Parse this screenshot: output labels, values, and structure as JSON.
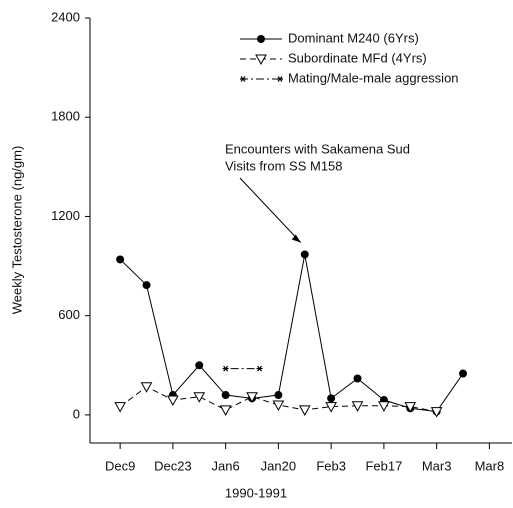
{
  "chart_data": {
    "type": "line",
    "annotation": [
      "Encounters with Sakamena Sud",
      "Visits from SS M158"
    ],
    "annotation_target": {
      "x": 49,
      "y": 970
    },
    "xlabel": "1990-1991",
    "ylabel": "Weekly Testosterone (ng/gm)",
    "xlim": [
      -8,
      104
    ],
    "xticks": [
      {
        "value": 0,
        "label": "Dec9"
      },
      {
        "value": 14,
        "label": "Dec23"
      },
      {
        "value": 28,
        "label": "Jan6"
      },
      {
        "value": 42,
        "label": "Jan20"
      },
      {
        "value": 56,
        "label": "Feb3"
      },
      {
        "value": 70,
        "label": "Feb17"
      },
      {
        "value": 84,
        "label": "Mar3"
      },
      {
        "value": 98,
        "label": "Mar8"
      }
    ],
    "ylim": [
      -170,
      2400
    ],
    "yticks": [
      0,
      600,
      1200,
      1800,
      2400
    ],
    "legend": "upper right",
    "series": [
      {
        "name": "Dominant M240 (6Yrs)",
        "color": "#000000",
        "marker": "circle",
        "dash": "solid",
        "x": [
          0,
          7,
          14,
          21,
          28,
          35,
          42,
          49,
          56,
          63,
          70,
          77,
          84,
          91
        ],
        "values": [
          940,
          785,
          120,
          300,
          120,
          100,
          120,
          970,
          100,
          220,
          90,
          40,
          20,
          250
        ]
      },
      {
        "name": "Subordinate MFd (4Yrs)",
        "color": "#000000",
        "marker": "triangle-down",
        "dash": "dashed",
        "x": [
          0,
          7,
          14,
          21,
          28,
          35,
          42,
          49,
          56,
          63,
          70,
          77,
          84
        ],
        "values": [
          50,
          170,
          90,
          110,
          30,
          110,
          60,
          30,
          50,
          55,
          55,
          50,
          20
        ]
      },
      {
        "name": "Mating/Male-male aggression",
        "color": "#000000",
        "marker": "asterisk",
        "dash": "dashdot",
        "x": [
          28,
          37
        ],
        "values": [
          280,
          280
        ]
      }
    ]
  }
}
